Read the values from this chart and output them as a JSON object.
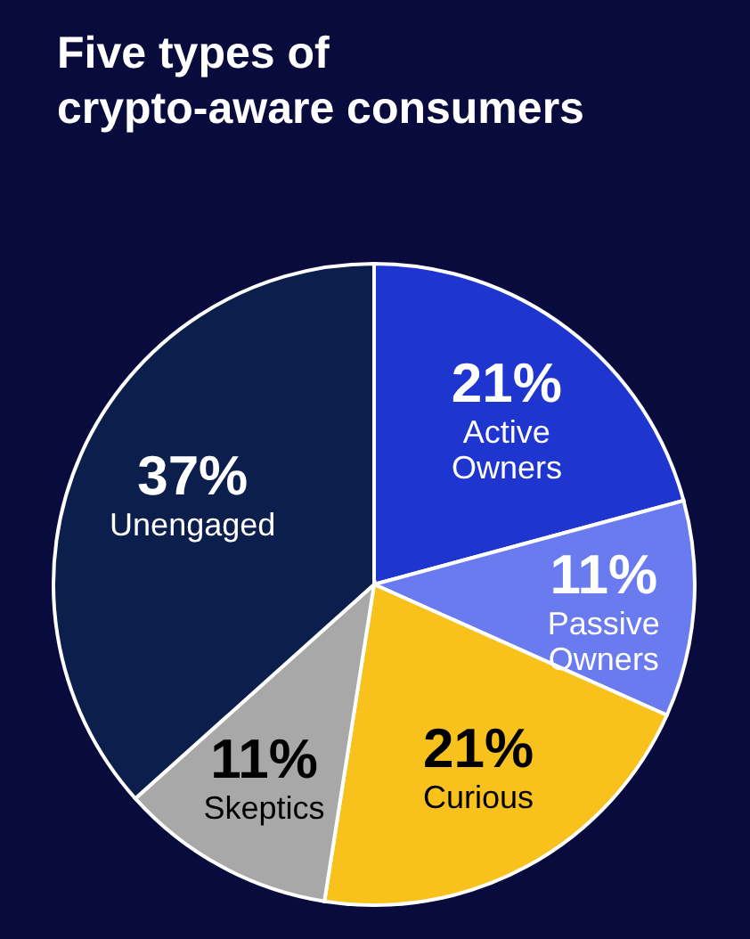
{
  "chart_data": {
    "type": "pie",
    "title": "Five types of crypto-aware consumers",
    "categories": [
      "Active Owners",
      "Passive Owners",
      "Curious",
      "Skeptics",
      "Unengaged"
    ],
    "values": [
      21,
      11,
      21,
      11,
      37
    ],
    "value_labels": [
      "21%",
      "11%",
      "21%",
      "11%",
      "37%"
    ],
    "colors": [
      "#1f35cf",
      "#6a7bef",
      "#f9c11c",
      "#a8a8a8",
      "#0c1f4c"
    ]
  }
}
